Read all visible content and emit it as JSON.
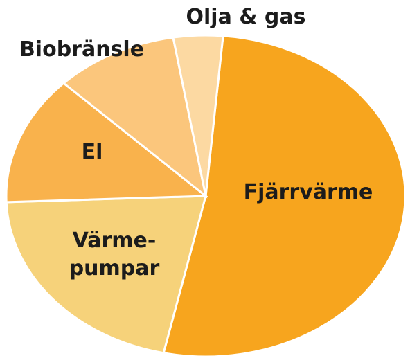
{
  "chart_data": {
    "type": "pie",
    "categories": [
      "Fjärrvärme",
      "Värme-\npumpar",
      "El",
      "Biobränsle",
      "Olja & gas"
    ],
    "values": [
      52,
      21,
      13,
      10,
      4
    ],
    "colors": [
      "#f7a51e",
      "#f6d27a",
      "#f9b24c",
      "#fbc67c",
      "#fcd9a2"
    ]
  }
}
